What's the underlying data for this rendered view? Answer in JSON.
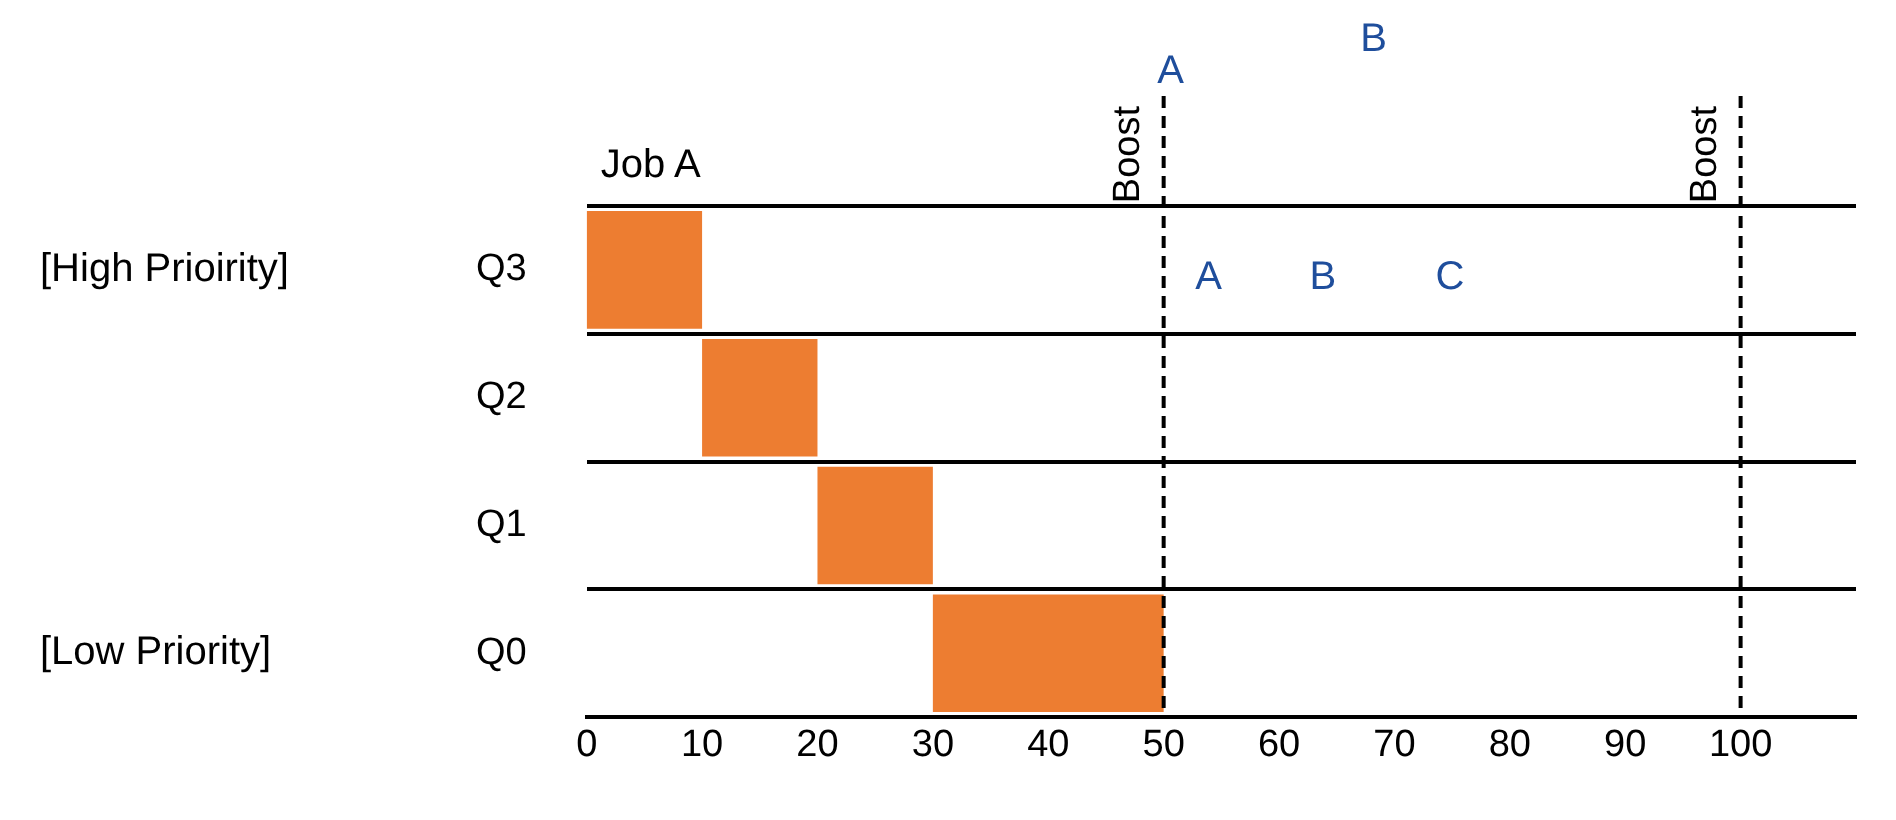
{
  "chart_data": {
    "type": "bar",
    "orientation": "horizontal",
    "categories": [
      "Q3",
      "Q2",
      "Q1",
      "Q0"
    ],
    "base": [
      0,
      10,
      20,
      30
    ],
    "values": [
      10,
      10,
      10,
      20
    ],
    "color": "#ed7d31",
    "xlim": [
      0,
      110
    ],
    "xticks": [
      0,
      10,
      20,
      30,
      40,
      50,
      60,
      70,
      80,
      90,
      100
    ],
    "grid": "y",
    "legend": false,
    "ref_lines": [
      {
        "axis": "x",
        "value": 50,
        "label": "Boost",
        "line_style": "dashed",
        "color": "#000000"
      },
      {
        "axis": "x",
        "value": 100,
        "label": "Boost",
        "line_style": "dashed",
        "color": "#000000"
      }
    ],
    "annotations": [
      "[High Prioirity]",
      "[Low Priority]",
      "Job A",
      "A",
      "B",
      "C",
      "A",
      "B"
    ]
  }
}
